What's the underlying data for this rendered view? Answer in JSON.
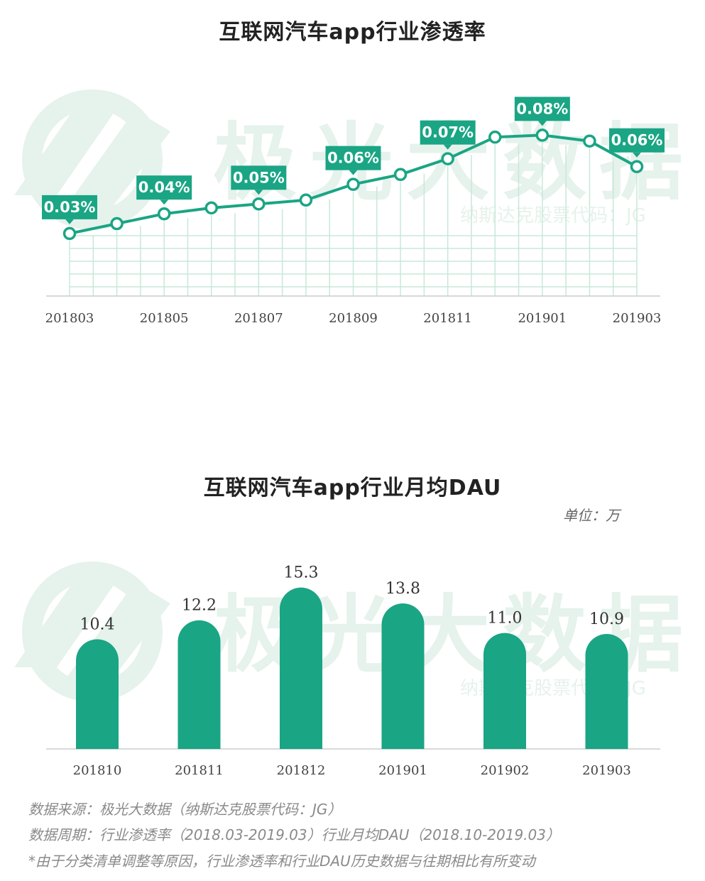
{
  "watermark": {
    "brand": "极光大数据",
    "ticker": "纳斯达克股票代码：JG"
  },
  "colors": {
    "primary": "#1aa584",
    "light": "#d6efe5",
    "grid": "#c7e8da",
    "watermark": "#e6f2ec"
  },
  "unit_label": "单位：万",
  "chart_data": [
    {
      "type": "line",
      "title": "互联网汽车app行业渗透率",
      "x": [
        "201803",
        "201804",
        "201805",
        "201806",
        "201807",
        "201808",
        "201809",
        "201810",
        "201811",
        "201812",
        "201901",
        "201902",
        "201903"
      ],
      "values": [
        0.03,
        0.035,
        0.04,
        0.043,
        0.045,
        0.047,
        0.055,
        0.06,
        0.068,
        0.079,
        0.08,
        0.077,
        0.064
      ],
      "tick_labels": [
        "201803",
        "201805",
        "201807",
        "201809",
        "201811",
        "201901",
        "201903"
      ],
      "data_labels": [
        {
          "index": 0,
          "text": "0.03%"
        },
        {
          "index": 2,
          "text": "0.04%"
        },
        {
          "index": 4,
          "text": "0.05%"
        },
        {
          "index": 6,
          "text": "0.06%"
        },
        {
          "index": 8,
          "text": "0.07%"
        },
        {
          "index": 10,
          "text": "0.08%"
        },
        {
          "index": 12,
          "text": "0.06%"
        }
      ],
      "xlabel": "",
      "ylabel": "",
      "ylim": [
        0.0,
        0.1
      ]
    },
    {
      "type": "bar",
      "title": "互联网汽车app行业月均DAU",
      "categories": [
        "201810",
        "201811",
        "201812",
        "201901",
        "201902",
        "201903"
      ],
      "values": [
        10.4,
        12.2,
        15.3,
        13.8,
        11.0,
        10.9
      ],
      "value_labels": [
        "10.4",
        "12.2",
        "15.3",
        "13.8",
        "11.0",
        "10.9"
      ],
      "xlabel": "",
      "ylabel": "单位：万",
      "ylim": [
        0,
        17.5
      ]
    }
  ],
  "footnotes": [
    "数据来源：极光大数据（纳斯达克股票代码：JG）",
    "数据周期：行业渗透率（2018.03-2019.03）行业月均DAU（2018.10-2019.03）",
    "*由于分类清单调整等原因，行业渗透率和行业DAU历史数据与往期相比有所变动"
  ]
}
